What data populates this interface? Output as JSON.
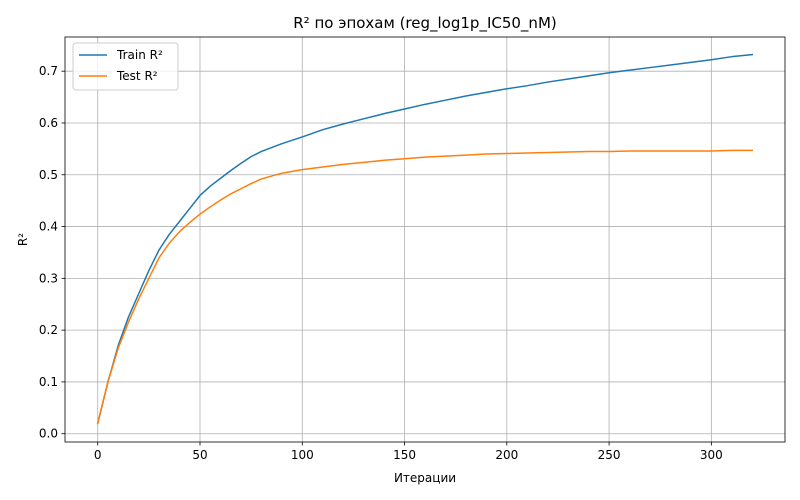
{
  "chart_data": {
    "type": "line",
    "title": "R² по эпохам (reg_log1p_IC50_nM)",
    "xlabel": "Итерации",
    "ylabel": "R²",
    "xlim": [
      -16,
      336
    ],
    "ylim": [
      -0.016,
      0.766
    ],
    "xticks": [
      0,
      50,
      100,
      150,
      200,
      250,
      300
    ],
    "yticks": [
      0.0,
      0.1,
      0.2,
      0.3,
      0.4,
      0.5,
      0.6,
      0.7
    ],
    "xtick_labels": [
      "0",
      "50",
      "100",
      "150",
      "200",
      "250",
      "300"
    ],
    "ytick_labels": [
      "0.0",
      "0.1",
      "0.2",
      "0.3",
      "0.4",
      "0.5",
      "0.6",
      "0.7"
    ],
    "grid": true,
    "legend_position": "upper-left",
    "x": [
      0,
      5,
      10,
      15,
      20,
      25,
      30,
      35,
      40,
      45,
      50,
      55,
      60,
      65,
      70,
      75,
      80,
      90,
      100,
      110,
      120,
      130,
      140,
      150,
      160,
      170,
      180,
      190,
      200,
      210,
      220,
      230,
      240,
      250,
      260,
      270,
      280,
      290,
      300,
      310,
      320
    ],
    "series": [
      {
        "name": "Train R²",
        "color": "#1f77b4",
        "values": [
          0.02,
          0.1,
          0.17,
          0.225,
          0.27,
          0.315,
          0.355,
          0.385,
          0.41,
          0.435,
          0.46,
          0.478,
          0.493,
          0.508,
          0.522,
          0.535,
          0.545,
          0.56,
          0.573,
          0.587,
          0.598,
          0.608,
          0.618,
          0.627,
          0.636,
          0.644,
          0.652,
          0.659,
          0.666,
          0.672,
          0.679,
          0.685,
          0.691,
          0.697,
          0.702,
          0.707,
          0.712,
          0.717,
          0.722,
          0.728,
          0.732
        ]
      },
      {
        "name": "Test R²",
        "color": "#ff7f0e",
        "values": [
          0.02,
          0.1,
          0.165,
          0.215,
          0.26,
          0.3,
          0.34,
          0.368,
          0.39,
          0.408,
          0.424,
          0.438,
          0.451,
          0.463,
          0.473,
          0.483,
          0.492,
          0.503,
          0.51,
          0.515,
          0.52,
          0.524,
          0.528,
          0.531,
          0.534,
          0.536,
          0.538,
          0.54,
          0.541,
          0.542,
          0.543,
          0.544,
          0.545,
          0.545,
          0.546,
          0.546,
          0.546,
          0.546,
          0.546,
          0.547,
          0.547
        ]
      }
    ]
  }
}
